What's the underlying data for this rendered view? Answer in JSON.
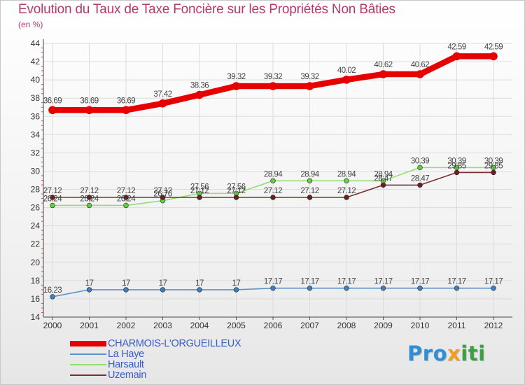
{
  "title": "Evolution du Taux de Taxe Foncière sur les Propriétés Non Bâties",
  "unit_label": "(en %)",
  "logo": {
    "text": "Proxiti",
    "letters": [
      {
        "ch": "P",
        "color": "#2f8fd6"
      },
      {
        "ch": "r",
        "color": "#2f8fd6"
      },
      {
        "ch": "o",
        "color": "#2f8fd6"
      },
      {
        "ch": "x",
        "color": "#f0a01e"
      },
      {
        "ch": "i",
        "color": "#3aa043"
      },
      {
        "ch": "t",
        "color": "#3aa043"
      },
      {
        "ch": "i",
        "color": "#3aa043"
      }
    ]
  },
  "chart_data": {
    "type": "line",
    "title": "Evolution du Taux de Taxe Foncière sur les Propriétés Non Bâties",
    "ylabel": "(en %)",
    "xlabel": "",
    "x": [
      "2000",
      "2001",
      "2002",
      "2003",
      "2004",
      "2005",
      "2006",
      "2007",
      "2008",
      "2009",
      "2010",
      "2011",
      "2012"
    ],
    "ylim": [
      14,
      44
    ],
    "yticks": [
      14,
      16,
      18,
      20,
      22,
      24,
      26,
      28,
      30,
      32,
      34,
      36,
      38,
      40,
      42,
      44
    ],
    "grid": true,
    "legend_position": "bottom-left",
    "series": [
      {
        "name": "CHARMOIS-L'ORGUEILLEUX",
        "color": "#e60000",
        "values": [
          36.69,
          36.69,
          36.69,
          37.42,
          38.36,
          39.32,
          39.32,
          39.32,
          40.02,
          40.62,
          40.62,
          42.59,
          42.59
        ],
        "labels": [
          "36.69",
          "36.69",
          "36.69",
          "37.42",
          "38.36",
          "39.32",
          "39.32",
          "39.32",
          "40.02",
          "40.62",
          "40.62",
          "42.59",
          "42.59"
        ]
      },
      {
        "name": "La Haye",
        "color": "#5b93c7",
        "values": [
          16.23,
          17,
          17,
          17,
          17,
          17,
          17.17,
          17.17,
          17.17,
          17.17,
          17.17,
          17.17,
          17.17
        ],
        "labels": [
          "16.23",
          "17",
          "17",
          "17",
          "17",
          "17",
          "17.17",
          "17.17",
          "17.17",
          "17.17",
          "17.17",
          "17.17",
          "17.17"
        ]
      },
      {
        "name": "Harsault",
        "color": "#90e070",
        "values": [
          26.24,
          26.24,
          26.24,
          26.76,
          27.56,
          27.56,
          28.94,
          28.94,
          28.94,
          28.94,
          30.39,
          30.39,
          30.39
        ],
        "labels": [
          "26.24",
          "26.24",
          "26.24",
          "26.76",
          "27.56",
          "27.56",
          "28.94",
          "28.94",
          "28.94",
          "28.94",
          "30.39",
          "30.39",
          "30.39"
        ]
      },
      {
        "name": "Uzemain",
        "color": "#7a3030",
        "values": [
          27.12,
          27.12,
          27.12,
          27.12,
          27.12,
          27.12,
          27.12,
          27.12,
          27.12,
          28.47,
          28.47,
          29.85,
          29.85
        ],
        "labels": [
          "27.12",
          "27.12",
          "27.12",
          "27.12",
          "27.12",
          "27.12",
          "27.12",
          "27.12",
          "27.12",
          "28.47",
          "28.47",
          "29.85",
          "29.85"
        ]
      }
    ]
  }
}
